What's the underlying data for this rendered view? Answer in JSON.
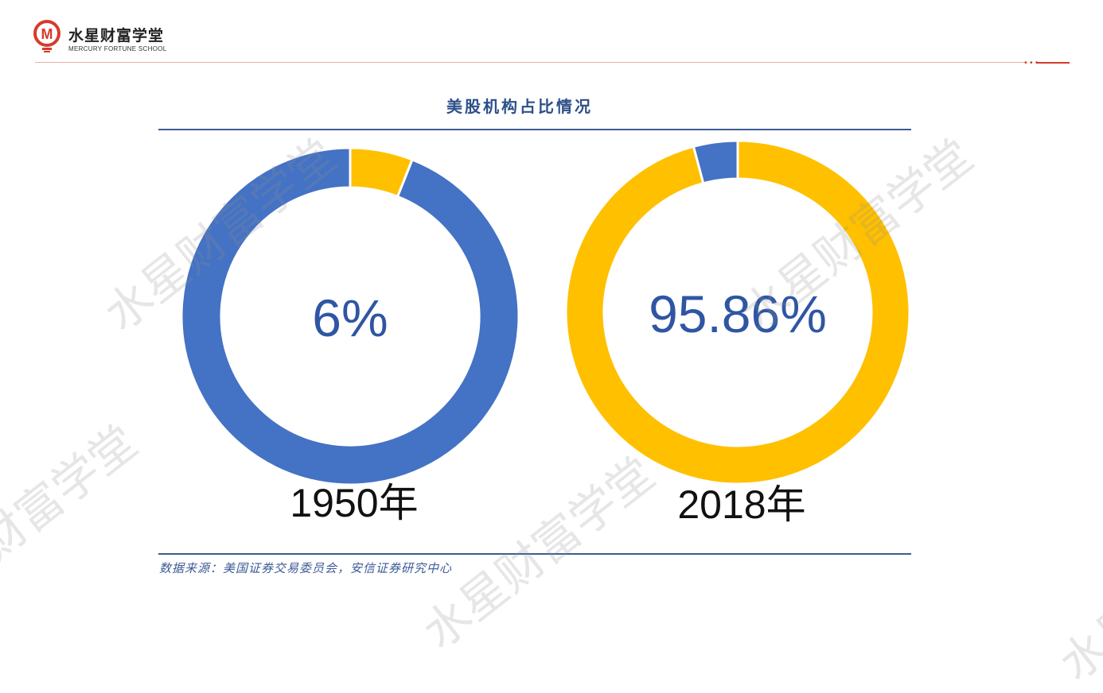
{
  "header": {
    "brand_cn": "水星财富学堂",
    "brand_en": "MERCURY FORTUNE SCHOOL",
    "logo_letter": "M",
    "dots": "•••"
  },
  "watermark_text": "水星财富学堂",
  "colors": {
    "blue": "#4472c4",
    "gold": "#ffc000",
    "center_text": "#2f56a4",
    "brand_red": "#d93a2b"
  },
  "chart_data": {
    "type": "donut",
    "title": "美股机构占比情况",
    "source": "数据来源：美国证券交易委员会，安信证券研究中心",
    "charts": [
      {
        "label": "1950年",
        "center_label": "6%",
        "slices": [
          {
            "value": 6,
            "color": "#ffc000"
          },
          {
            "value": 94,
            "color": "#4472c4"
          }
        ]
      },
      {
        "label": "2018年",
        "center_label": "95.86%",
        "slices": [
          {
            "value": 95.86,
            "color": "#ffc000"
          },
          {
            "value": 4.14,
            "color": "#4472c4"
          }
        ]
      }
    ]
  }
}
